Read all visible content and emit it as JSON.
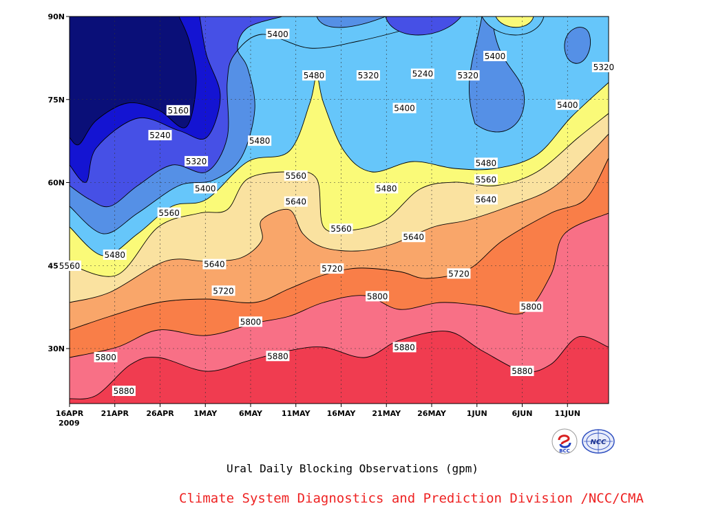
{
  "chart_data": {
    "type": "contour",
    "title": "Ural Daily Blocking Observations (gpm)",
    "credit": "Climate System Diagnostics and Prediction Division /NCC/CMA",
    "x_ticks": [
      "16APR",
      "21APR",
      "26APR",
      "1MAY",
      "6MAY",
      "11MAY",
      "16MAY",
      "21MAY",
      "26MAY",
      "1JUN",
      "6JUN",
      "11JUN"
    ],
    "x_year": "2009",
    "x_range": [
      "2009-04-16",
      "2009-06-18"
    ],
    "y_ticks": [
      "30N",
      "45N",
      "60N",
      "75N",
      "90N"
    ],
    "y_range": [
      20,
      90
    ],
    "grid": true,
    "contour_levels": [
      5160,
      5240,
      5320,
      5400,
      5480,
      5560,
      5640,
      5720,
      5800,
      5880
    ],
    "contour_labels": [
      {
        "text": "5160",
        "date": "2009-04-28",
        "lat": 73
      },
      {
        "text": "5240",
        "date": "2009-04-26",
        "lat": 68.5
      },
      {
        "text": "5320",
        "date": "2009-04-30",
        "lat": 63.8
      },
      {
        "text": "5400",
        "date": "2009-05-01",
        "lat": 58.9
      },
      {
        "text": "5560",
        "date": "2009-04-27",
        "lat": 54.5
      },
      {
        "text": "5480",
        "date": "2009-04-21",
        "lat": 46.9
      },
      {
        "text": "5560",
        "date": "2009-04-16",
        "lat": 44.9
      },
      {
        "text": "5400",
        "date": "2009-05-09",
        "lat": 86.8
      },
      {
        "text": "5480",
        "date": "2009-05-07",
        "lat": 67.5
      },
      {
        "text": "5560",
        "date": "2009-05-11",
        "lat": 61.2
      },
      {
        "text": "5640",
        "date": "2009-05-11",
        "lat": 56.5
      },
      {
        "text": "5640",
        "date": "2009-05-02",
        "lat": 45.2
      },
      {
        "text": "5720",
        "date": "2009-05-03",
        "lat": 40.4
      },
      {
        "text": "5800",
        "date": "2009-05-06",
        "lat": 34.8
      },
      {
        "text": "5880",
        "date": "2009-05-09",
        "lat": 28.6
      },
      {
        "text": "5800",
        "date": "2009-04-20",
        "lat": 28.4
      },
      {
        "text": "5880",
        "date": "2009-04-22",
        "lat": 22.3
      },
      {
        "text": "5480",
        "date": "2009-05-13",
        "lat": 79.3
      },
      {
        "text": "5320",
        "date": "2009-05-19",
        "lat": 79.3
      },
      {
        "text": "5240",
        "date": "2009-05-25",
        "lat": 79.6
      },
      {
        "text": "5400",
        "date": "2009-05-23",
        "lat": 73.4
      },
      {
        "text": "5480",
        "date": "2009-05-21",
        "lat": 58.9
      },
      {
        "text": "5560",
        "date": "2009-05-16",
        "lat": 51.6
      },
      {
        "text": "5640",
        "date": "2009-05-24",
        "lat": 50.1
      },
      {
        "text": "5720",
        "date": "2009-05-15",
        "lat": 44.4
      },
      {
        "text": "5800",
        "date": "2009-05-20",
        "lat": 39.4
      },
      {
        "text": "5880",
        "date": "2009-05-23",
        "lat": 30.2
      },
      {
        "text": "5320",
        "date": "2009-05-30",
        "lat": 79.3
      },
      {
        "text": "5400",
        "date": "2009-06-02",
        "lat": 82.8
      },
      {
        "text": "5320",
        "date": "2009-06-14",
        "lat": 80.8
      },
      {
        "text": "5400",
        "date": "2009-06-10",
        "lat": 74.0
      },
      {
        "text": "5480",
        "date": "2009-06-01",
        "lat": 63.5
      },
      {
        "text": "5560",
        "date": "2009-06-01",
        "lat": 60.5
      },
      {
        "text": "5640",
        "date": "2009-06-01",
        "lat": 56.9
      },
      {
        "text": "5720",
        "date": "2009-05-29",
        "lat": 43.5
      },
      {
        "text": "5800",
        "date": "2009-06-06",
        "lat": 37.5
      },
      {
        "text": "5880",
        "date": "2009-06-05",
        "lat": 25.9
      }
    ],
    "colors": {
      "lt5160": "#0a0f78",
      "5160": "#1414d2",
      "5240": "#4650e6",
      "5320": "#5590e6",
      "5400": "#66c6fa",
      "5480": "#fafa78",
      "5560": "#fae2a0",
      "5640": "#f9a66a",
      "5720": "#f97e48",
      "5800": "#f87086",
      "5880": "#f03c50"
    }
  }
}
